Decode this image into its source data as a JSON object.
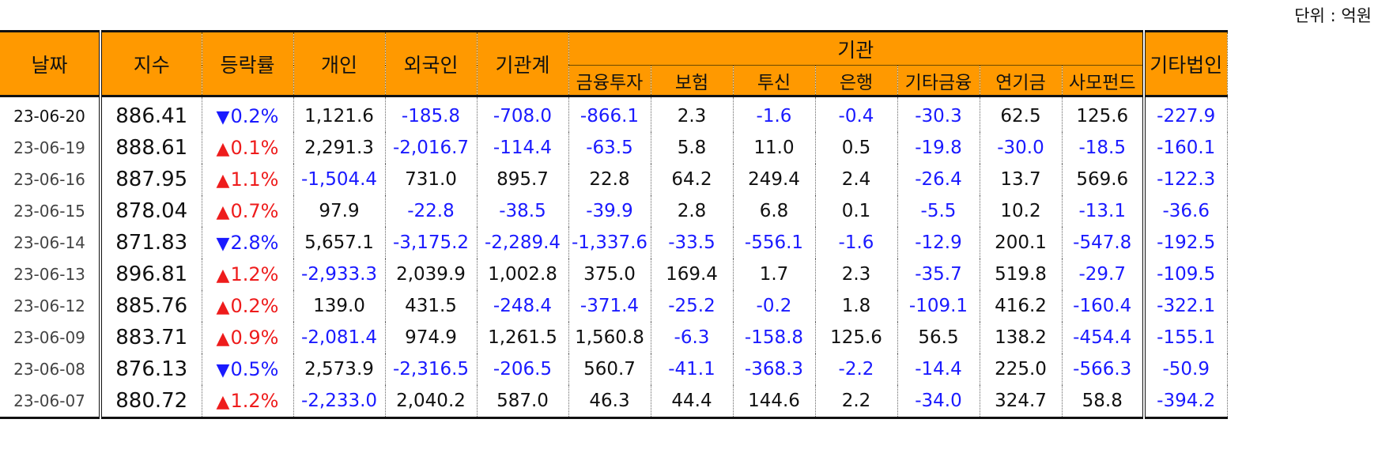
{
  "unit_label": "단위 : 억원",
  "headers": {
    "date": "날짜",
    "index": "지수",
    "change": "등락률",
    "individual": "개인",
    "foreign": "외국인",
    "institution_total": "기관계",
    "institution_group": "기관",
    "sub": [
      "금융투자",
      "보험",
      "투신",
      "은행",
      "기타금융",
      "연기금",
      "사모펀드"
    ],
    "other_corp": "기타법인"
  },
  "colors": {
    "header_bg": "#FF9900",
    "negative": "#1a1aff",
    "up": "#ee1c1c",
    "down": "#1a1aff"
  },
  "rows": [
    {
      "date": "23-06-20",
      "index": "886.41",
      "dir": "down",
      "change": "0.2%",
      "individual": "1,121.6",
      "foreign": "-185.8",
      "institution_total": "-708.0",
      "fin_invest": "-866.1",
      "insurance": "2.3",
      "trust": "-1.6",
      "bank": "-0.4",
      "other_fin": "-30.3",
      "pension": "62.5",
      "private_fund": "125.6",
      "other_corp": "-227.9"
    },
    {
      "date": "23-06-19",
      "index": "888.61",
      "dir": "up",
      "change": "0.1%",
      "individual": "2,291.3",
      "foreign": "-2,016.7",
      "institution_total": "-114.4",
      "fin_invest": "-63.5",
      "insurance": "5.8",
      "trust": "11.0",
      "bank": "0.5",
      "other_fin": "-19.8",
      "pension": "-30.0",
      "private_fund": "-18.5",
      "other_corp": "-160.1"
    },
    {
      "date": "23-06-16",
      "index": "887.95",
      "dir": "up",
      "change": "1.1%",
      "individual": "-1,504.4",
      "foreign": "731.0",
      "institution_total": "895.7",
      "fin_invest": "22.8",
      "insurance": "64.2",
      "trust": "249.4",
      "bank": "2.4",
      "other_fin": "-26.4",
      "pension": "13.7",
      "private_fund": "569.6",
      "other_corp": "-122.3"
    },
    {
      "date": "23-06-15",
      "index": "878.04",
      "dir": "up",
      "change": "0.7%",
      "individual": "97.9",
      "foreign": "-22.8",
      "institution_total": "-38.5",
      "fin_invest": "-39.9",
      "insurance": "2.8",
      "trust": "6.8",
      "bank": "0.1",
      "other_fin": "-5.5",
      "pension": "10.2",
      "private_fund": "-13.1",
      "other_corp": "-36.6"
    },
    {
      "date": "23-06-14",
      "index": "871.83",
      "dir": "down",
      "change": "2.8%",
      "individual": "5,657.1",
      "foreign": "-3,175.2",
      "institution_total": "-2,289.4",
      "fin_invest": "-1,337.6",
      "insurance": "-33.5",
      "trust": "-556.1",
      "bank": "-1.6",
      "other_fin": "-12.9",
      "pension": "200.1",
      "private_fund": "-547.8",
      "other_corp": "-192.5"
    },
    {
      "date": "23-06-13",
      "index": "896.81",
      "dir": "up",
      "change": "1.2%",
      "individual": "-2,933.3",
      "foreign": "2,039.9",
      "institution_total": "1,002.8",
      "fin_invest": "375.0",
      "insurance": "169.4",
      "trust": "1.7",
      "bank": "2.3",
      "other_fin": "-35.7",
      "pension": "519.8",
      "private_fund": "-29.7",
      "other_corp": "-109.5"
    },
    {
      "date": "23-06-12",
      "index": "885.76",
      "dir": "up",
      "change": "0.2%",
      "individual": "139.0",
      "foreign": "431.5",
      "institution_total": "-248.4",
      "fin_invest": "-371.4",
      "insurance": "-25.2",
      "trust": "-0.2",
      "bank": "1.8",
      "other_fin": "-109.1",
      "pension": "416.2",
      "private_fund": "-160.4",
      "other_corp": "-322.1"
    },
    {
      "date": "23-06-09",
      "index": "883.71",
      "dir": "up",
      "change": "0.9%",
      "individual": "-2,081.4",
      "foreign": "974.9",
      "institution_total": "1,261.5",
      "fin_invest": "1,560.8",
      "insurance": "-6.3",
      "trust": "-158.8",
      "bank": "125.6",
      "other_fin": "56.5",
      "pension": "138.2",
      "private_fund": "-454.4",
      "other_corp": "-155.1"
    },
    {
      "date": "23-06-08",
      "index": "876.13",
      "dir": "down",
      "change": "0.5%",
      "individual": "2,573.9",
      "foreign": "-2,316.5",
      "institution_total": "-206.5",
      "fin_invest": "560.7",
      "insurance": "-41.1",
      "trust": "-368.3",
      "bank": "-2.2",
      "other_fin": "-14.4",
      "pension": "225.0",
      "private_fund": "-566.3",
      "other_corp": "-50.9"
    },
    {
      "date": "23-06-07",
      "index": "880.72",
      "dir": "up",
      "change": "1.2%",
      "individual": "-2,233.0",
      "foreign": "2,040.2",
      "institution_total": "587.0",
      "fin_invest": "46.3",
      "insurance": "44.4",
      "trust": "144.6",
      "bank": "2.2",
      "other_fin": "-34.0",
      "pension": "324.7",
      "private_fund": "58.8",
      "other_corp": "-394.2"
    }
  ]
}
